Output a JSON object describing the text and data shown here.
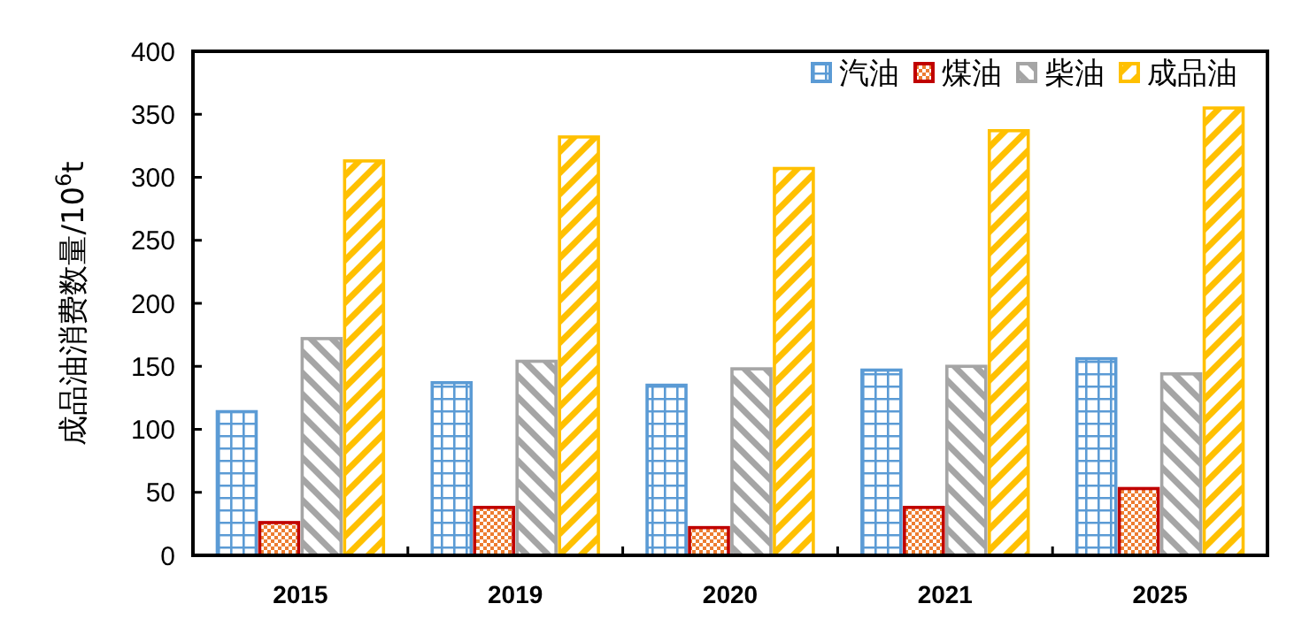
{
  "chart_data": {
    "type": "bar",
    "ylabel": "成品油消费数量/10$^{6}$t",
    "categories": [
      "2015",
      "2019",
      "2020",
      "2021",
      "2025"
    ],
    "series": [
      {
        "name": "汽油",
        "color": "#5b9bd5",
        "values": [
          114,
          137,
          135,
          147,
          156
        ]
      },
      {
        "name": "煤油",
        "color": "#c00000",
        "values": [
          26,
          38,
          22,
          38,
          53
        ]
      },
      {
        "name": "柴油",
        "color": "#a5a5a5",
        "values": [
          172,
          154,
          148,
          150,
          144
        ]
      },
      {
        "name": "成品油",
        "color": "#ffc000",
        "values": [
          313,
          332,
          307,
          337,
          355
        ]
      }
    ],
    "ylim": [
      0,
      400
    ],
    "yticks": [
      0,
      50,
      100,
      150,
      200,
      250,
      300,
      350,
      400
    ],
    "grid": false,
    "legend": "top right"
  }
}
